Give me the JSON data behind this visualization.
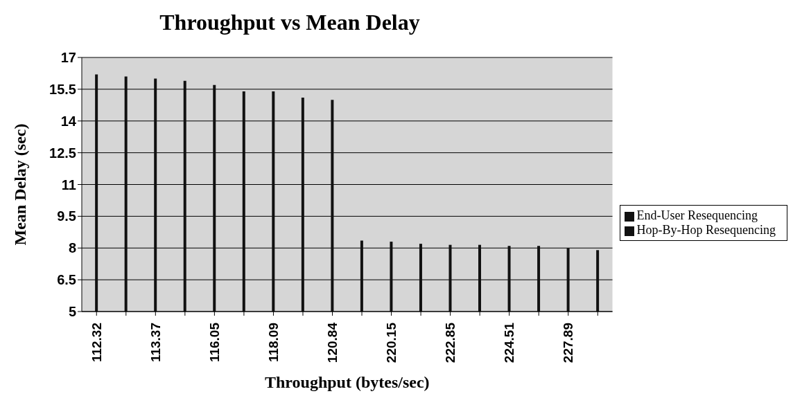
{
  "chart_data": {
    "type": "bar",
    "title": "Throughput vs Mean Delay",
    "xlabel": "Throughput (bytes/sec)",
    "ylabel": "Mean Delay (sec)",
    "categories": [
      "112.32",
      null,
      "113.37",
      null,
      "116.05",
      null,
      "118.09",
      null,
      "120.84",
      null,
      "220.15",
      null,
      "222.85",
      null,
      "224.51",
      null,
      "227.89",
      null
    ],
    "series": [
      {
        "name": "End-User Resequencing",
        "color": "#111111",
        "values": [
          16.2,
          16.1,
          16.0,
          15.9,
          15.7,
          15.4,
          15.4,
          15.1,
          15.0,
          null,
          null,
          null,
          null,
          null,
          null,
          null,
          null,
          null
        ]
      },
      {
        "name": "Hop-By-Hop Resequencing",
        "color": "#111111",
        "values": [
          null,
          null,
          null,
          null,
          null,
          null,
          null,
          null,
          null,
          8.35,
          8.3,
          8.2,
          8.15,
          8.15,
          8.1,
          8.1,
          8.0,
          7.9
        ]
      }
    ],
    "stacked": true,
    "ylim": [
      5,
      17
    ],
    "yticks": [
      5,
      6.5,
      8,
      9.5,
      11,
      12.5,
      14,
      15.5,
      17
    ],
    "grid": "y",
    "legend": "right"
  }
}
